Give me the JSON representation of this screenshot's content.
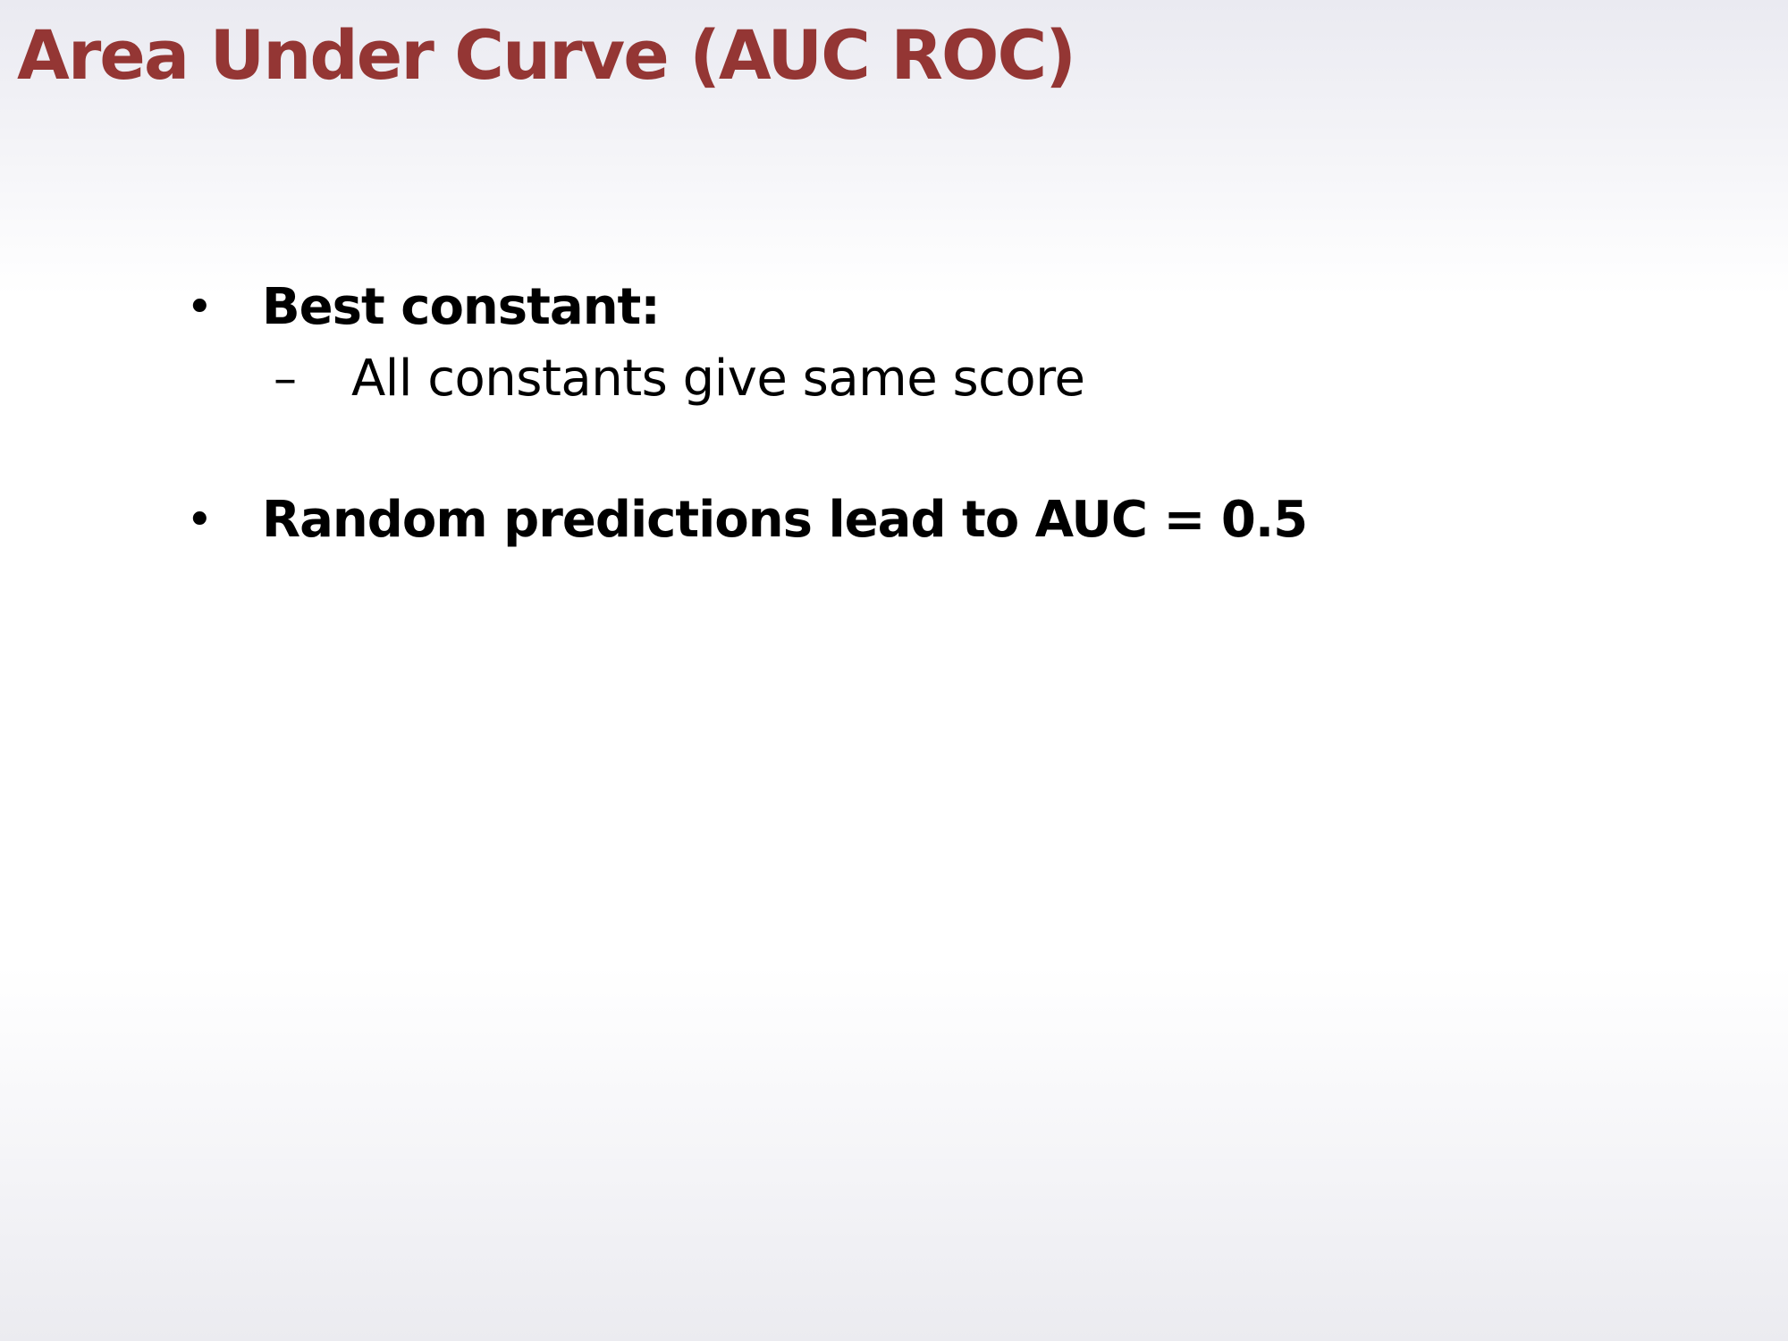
{
  "slide": {
    "title": "Area Under Curve (AUC ROC)",
    "title_color": "#943634",
    "bullet_symbol": "•",
    "sub_bullet_symbol": "–",
    "bullets": [
      {
        "text": "Best constant:",
        "sub_items": [
          {
            "text": "All constants give same score"
          }
        ]
      },
      {
        "text": "Random predictions lead to AUC = 0.5",
        "sub_items": []
      }
    ]
  }
}
